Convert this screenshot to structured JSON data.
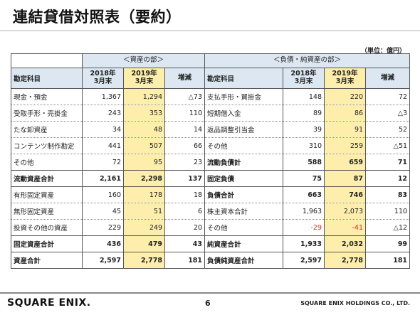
{
  "title": "連結貸借対照表（要約）",
  "unit": "（単位：億円）",
  "assets_group": "＜資産の部＞",
  "liab_group": "＜負債・純資産の部＞",
  "headers": {
    "account": "勘定科目",
    "y2018": "2018年\n3月末",
    "y2019": "2019年\n3月末",
    "change": "増減"
  },
  "rows": [
    {
      "a": "現金・預金",
      "a18": "1,367",
      "a19": "1,294",
      "ad": "△73",
      "l": "支払手形・買掛金",
      "l18": "148",
      "l19": "220",
      "ld": "72"
    },
    {
      "a": "受取手形・売掛金",
      "a18": "243",
      "a19": "353",
      "ad": "110",
      "l": "短期借入金",
      "l18": "89",
      "l19": "86",
      "ld": "△3"
    },
    {
      "a": "たな卸資産",
      "a18": "34",
      "a19": "48",
      "ad": "14",
      "l": "返品調整引当金",
      "l18": "39",
      "l19": "91",
      "ld": "52"
    },
    {
      "a": "コンテンツ制作勘定",
      "a18": "441",
      "a19": "507",
      "ad": "66",
      "l": "その他",
      "l18": "310",
      "l19": "259",
      "ld": "△51"
    },
    {
      "a": "その他",
      "a18": "72",
      "a19": "95",
      "ad": "23",
      "l": "流動負債計",
      "l18": "588",
      "l19": "659",
      "ld": "71"
    },
    {
      "a": "流動資産合計",
      "a18": "2,161",
      "a19": "2,298",
      "ad": "137",
      "l": "固定負債",
      "l18": "75",
      "l19": "87",
      "ld": "12"
    },
    {
      "a": "有形固定資産",
      "a18": "160",
      "a19": "178",
      "ad": "18",
      "l": "負債合計",
      "l18": "663",
      "l19": "746",
      "ld": "83"
    },
    {
      "a": "無形固定資産",
      "a18": "45",
      "a19": "51",
      "ad": "6",
      "l": "株主資本合計",
      "l18": "1,963",
      "l19": "2,073",
      "ld": "110"
    },
    {
      "a": "投資その他の資産",
      "a18": "229",
      "a19": "249",
      "ad": "20",
      "l": "その他",
      "l18": "-29",
      "l19": "-41",
      "ld": "△12"
    },
    {
      "a": "固定資産合計",
      "a18": "436",
      "a19": "479",
      "ad": "43",
      "l": "純資産合計",
      "l18": "1,933",
      "l19": "2,032",
      "ld": "99"
    },
    {
      "a": "資産合計",
      "a18": "2,597",
      "a19": "2,778",
      "ad": "181",
      "l": "負債純資産合計",
      "l18": "2,597",
      "l19": "2,778",
      "ld": "181"
    }
  ],
  "footer": {
    "logo": "SQUARE ENIX.",
    "page": "6",
    "company": "SQUARE ENIX HOLDINGS CO., LTD."
  },
  "colors": {
    "header_blue": "#dce7f2",
    "highlight_yellow": "#fdefab",
    "negative_red": "#e8281e"
  }
}
